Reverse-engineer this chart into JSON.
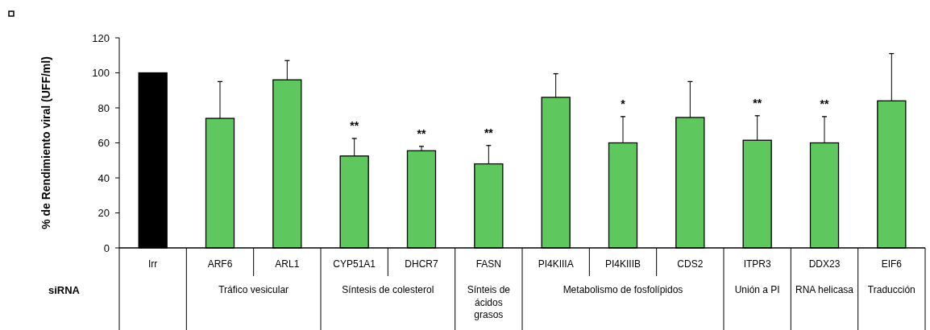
{
  "chart_data": {
    "type": "bar",
    "ylabel": "% de Rendimiento viral (UFF/ml)",
    "xlabel": "siRNA",
    "categories": [
      "Irr",
      "ARF6",
      "ARL1",
      "CYP51A1",
      "DHCR7",
      "FASN",
      "PI4KIIIA",
      "PI4KIIIB",
      "CDS2",
      "ITPR3",
      "DDX23",
      "EIF6"
    ],
    "values": [
      100,
      74,
      96,
      52.5,
      55.5,
      48,
      86,
      60,
      74.5,
      61.5,
      60,
      84
    ],
    "colors": [
      "#000000",
      "#5ec85e",
      "#5ec85e",
      "#5ec85e",
      "#5ec85e",
      "#5ec85e",
      "#5ec85e",
      "#5ec85e",
      "#5ec85e",
      "#5ec85e",
      "#5ec85e",
      "#5ec85e"
    ],
    "errors": [
      null,
      [
        74,
        95
      ],
      [
        96,
        107
      ],
      [
        52.5,
        62.5
      ],
      [
        55.5,
        58
      ],
      [
        48,
        58.5
      ],
      [
        86,
        99.5
      ],
      [
        60,
        75
      ],
      [
        74.5,
        95
      ],
      [
        61.5,
        75.5
      ],
      [
        60,
        75
      ],
      [
        84,
        111
      ]
    ],
    "value_labels": [
      null,
      null,
      null,
      "**",
      "**",
      "**",
      null,
      "*",
      null,
      "**",
      "**",
      null
    ],
    "ylim": [
      0,
      120
    ],
    "yticks": [
      0,
      20,
      40,
      60,
      80,
      100,
      120
    ],
    "grid": false,
    "annotations": [
      "Tráfico vesicular",
      "Síntesis de colesterol",
      "Sínteis de ácidos grasos",
      "Metabolismo de fosfolípidos",
      "Unión a PI",
      "RNA helicasa",
      "Traducción"
    ]
  }
}
